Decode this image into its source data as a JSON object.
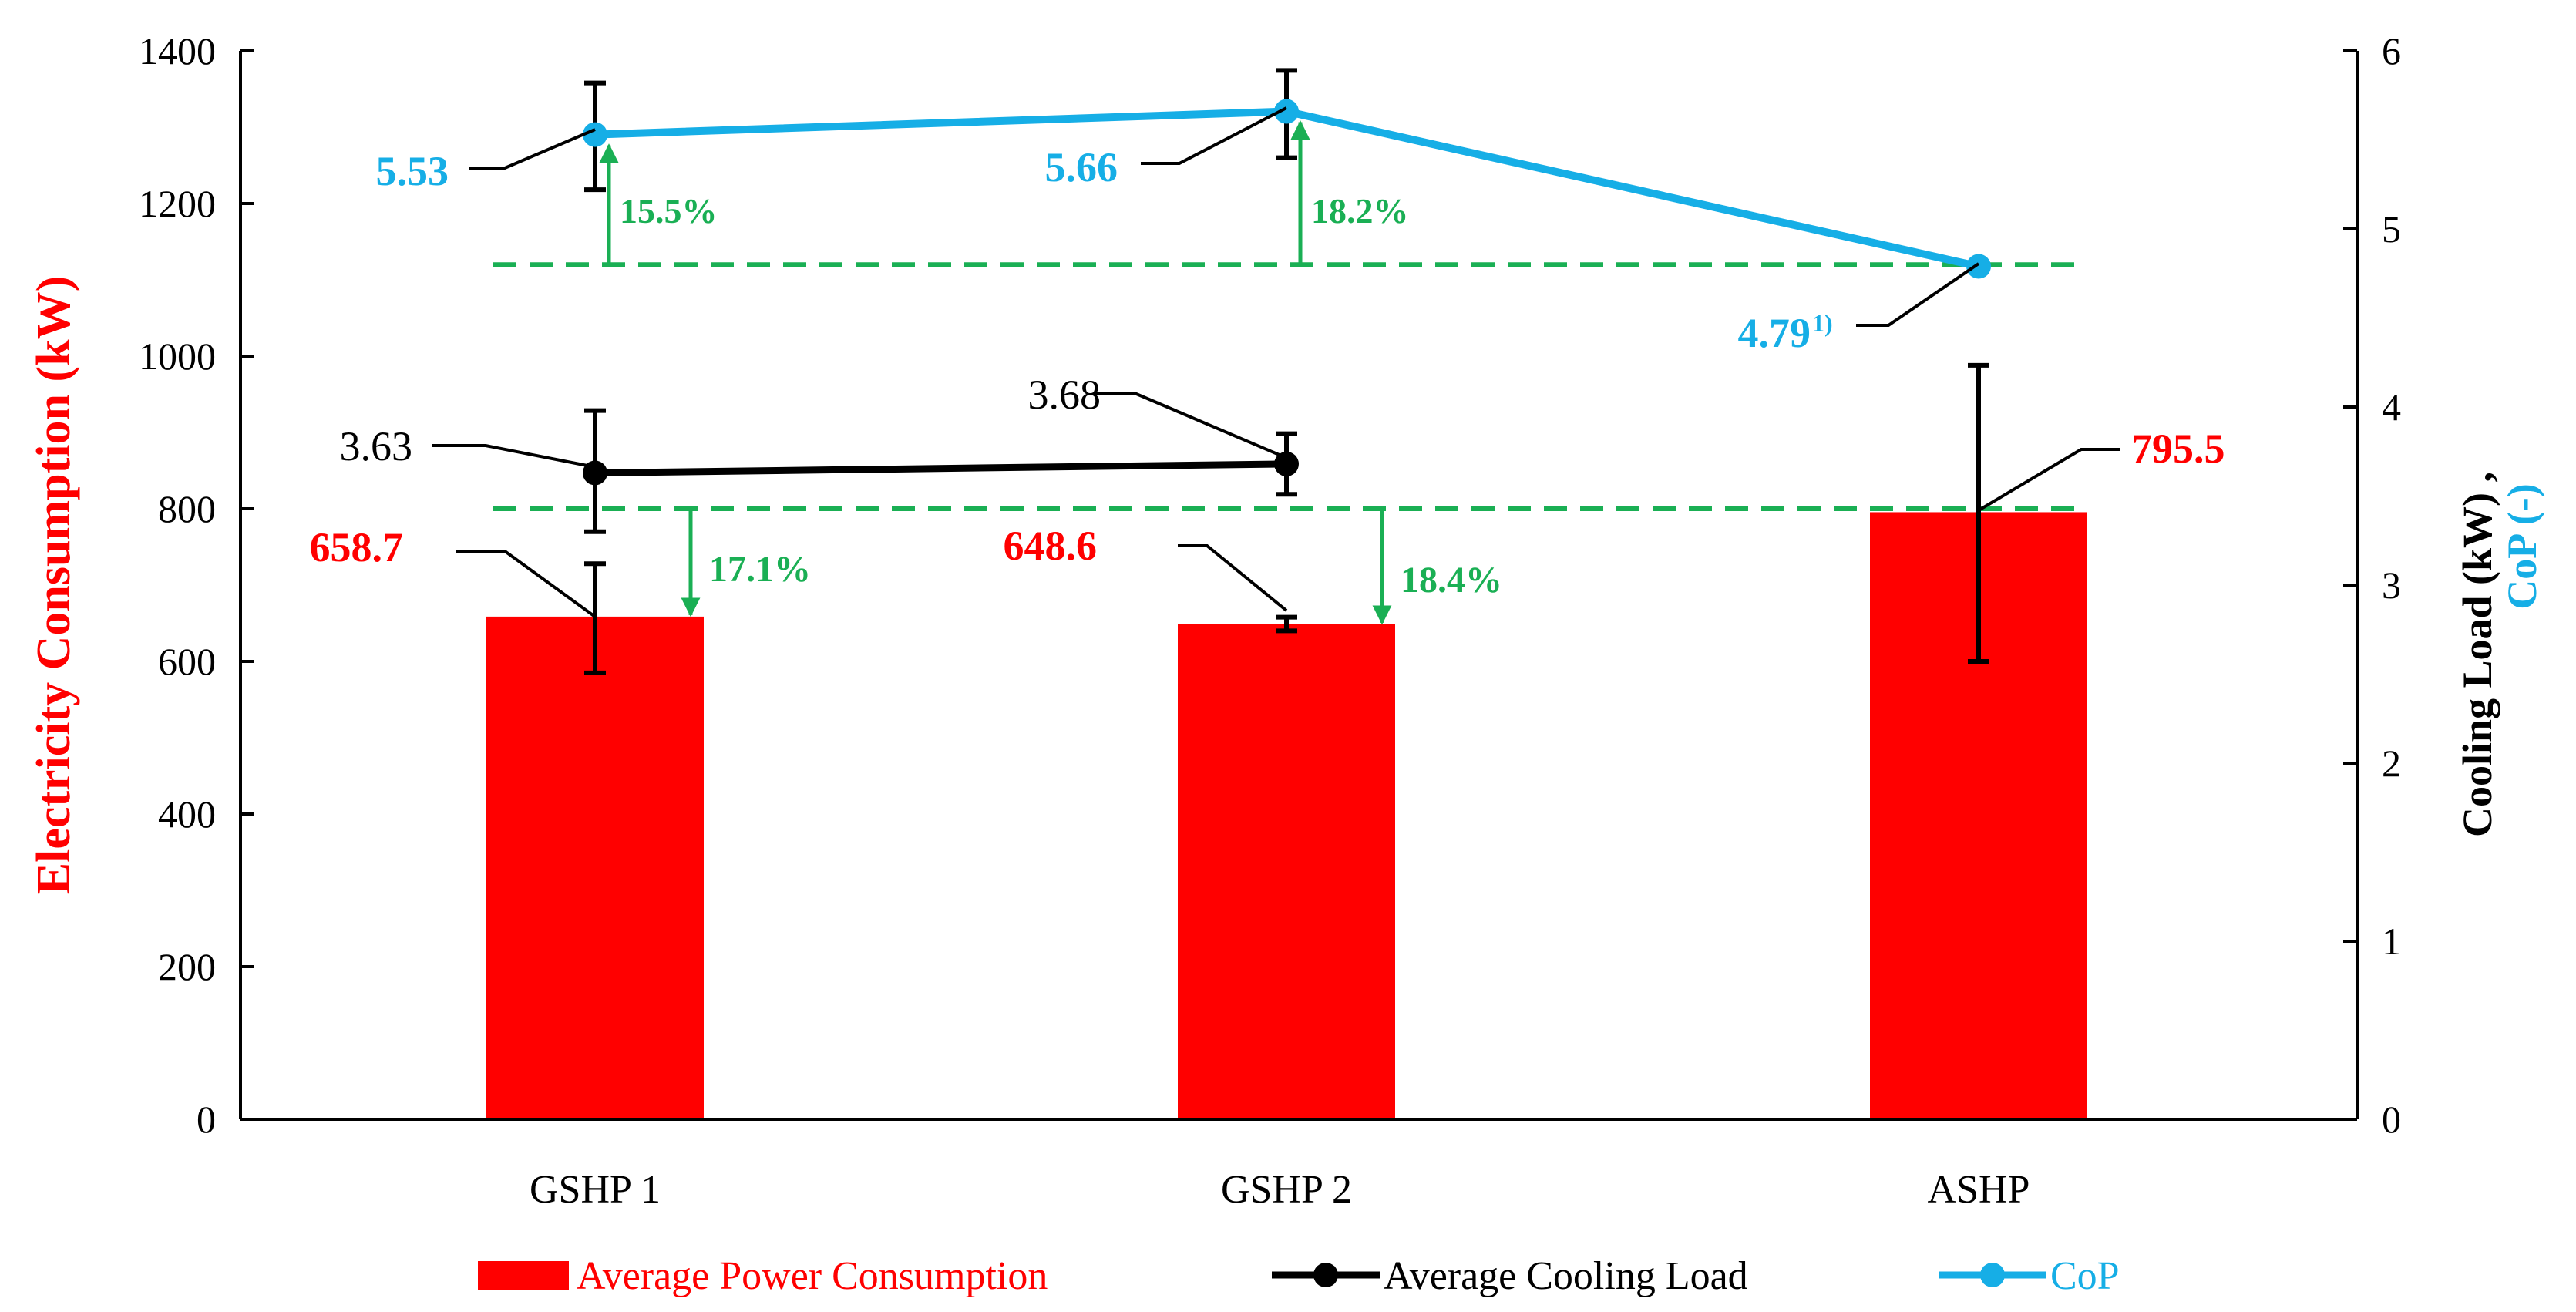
{
  "chart_data": {
    "type": "bar",
    "categories": [
      "GSHP 1",
      "GSHP 2",
      "ASHP"
    ],
    "y_left": {
      "label": "Electricity Consumption (kW)",
      "range": [
        0,
        1400
      ],
      "ticks": [
        "0",
        "200",
        "400",
        "600",
        "800",
        "1000",
        "1200",
        "1400"
      ]
    },
    "y_right": {
      "label_part1": "Cooling Load (kW)",
      "label_sep": ",",
      "label_part2": "CoP (-)",
      "range": [
        0,
        6
      ],
      "ticks": [
        "0",
        "1",
        "2",
        "3",
        "4",
        "5",
        "6"
      ]
    },
    "series": [
      {
        "name": "Average Power Consumption",
        "kind": "bar",
        "axis": "left",
        "values": [
          658.7,
          648.6,
          795.5
        ],
        "labels": [
          "658.7",
          "648.6",
          "795.5"
        ],
        "error_low": [
          585,
          640,
          600
        ],
        "error_high": [
          728,
          658,
          988
        ],
        "color": "#ff0000"
      },
      {
        "name": "Average Cooling Load",
        "kind": "line",
        "axis": "right",
        "values": [
          3.63,
          3.68,
          null
        ],
        "labels": [
          "3.63",
          "3.68",
          ""
        ],
        "error_low": [
          3.3,
          3.51,
          null
        ],
        "error_high": [
          3.98,
          3.85,
          null
        ],
        "color": "#000000"
      },
      {
        "name": "CoP",
        "kind": "line",
        "axis": "right",
        "values": [
          5.53,
          5.66,
          4.79
        ],
        "labels": [
          "5.53",
          "5.66",
          "4.79"
        ],
        "label_sup": [
          "",
          "",
          "1)"
        ],
        "error_low": [
          5.22,
          5.4,
          null
        ],
        "error_high": [
          5.82,
          5.89,
          null
        ],
        "color": "#16aee6"
      }
    ],
    "reference_lines": [
      {
        "axis": "left",
        "value": 1120,
        "color": "#1aaf54"
      },
      {
        "axis": "left",
        "value": 800,
        "color": "#1aaf54"
      }
    ],
    "annotations": {
      "cop_increase": [
        "15.5%",
        "18.2%"
      ],
      "power_reduction": [
        "17.1%",
        "18.4%"
      ],
      "color": "#1aaf54"
    },
    "legend_position": "bottom",
    "grid": false
  }
}
